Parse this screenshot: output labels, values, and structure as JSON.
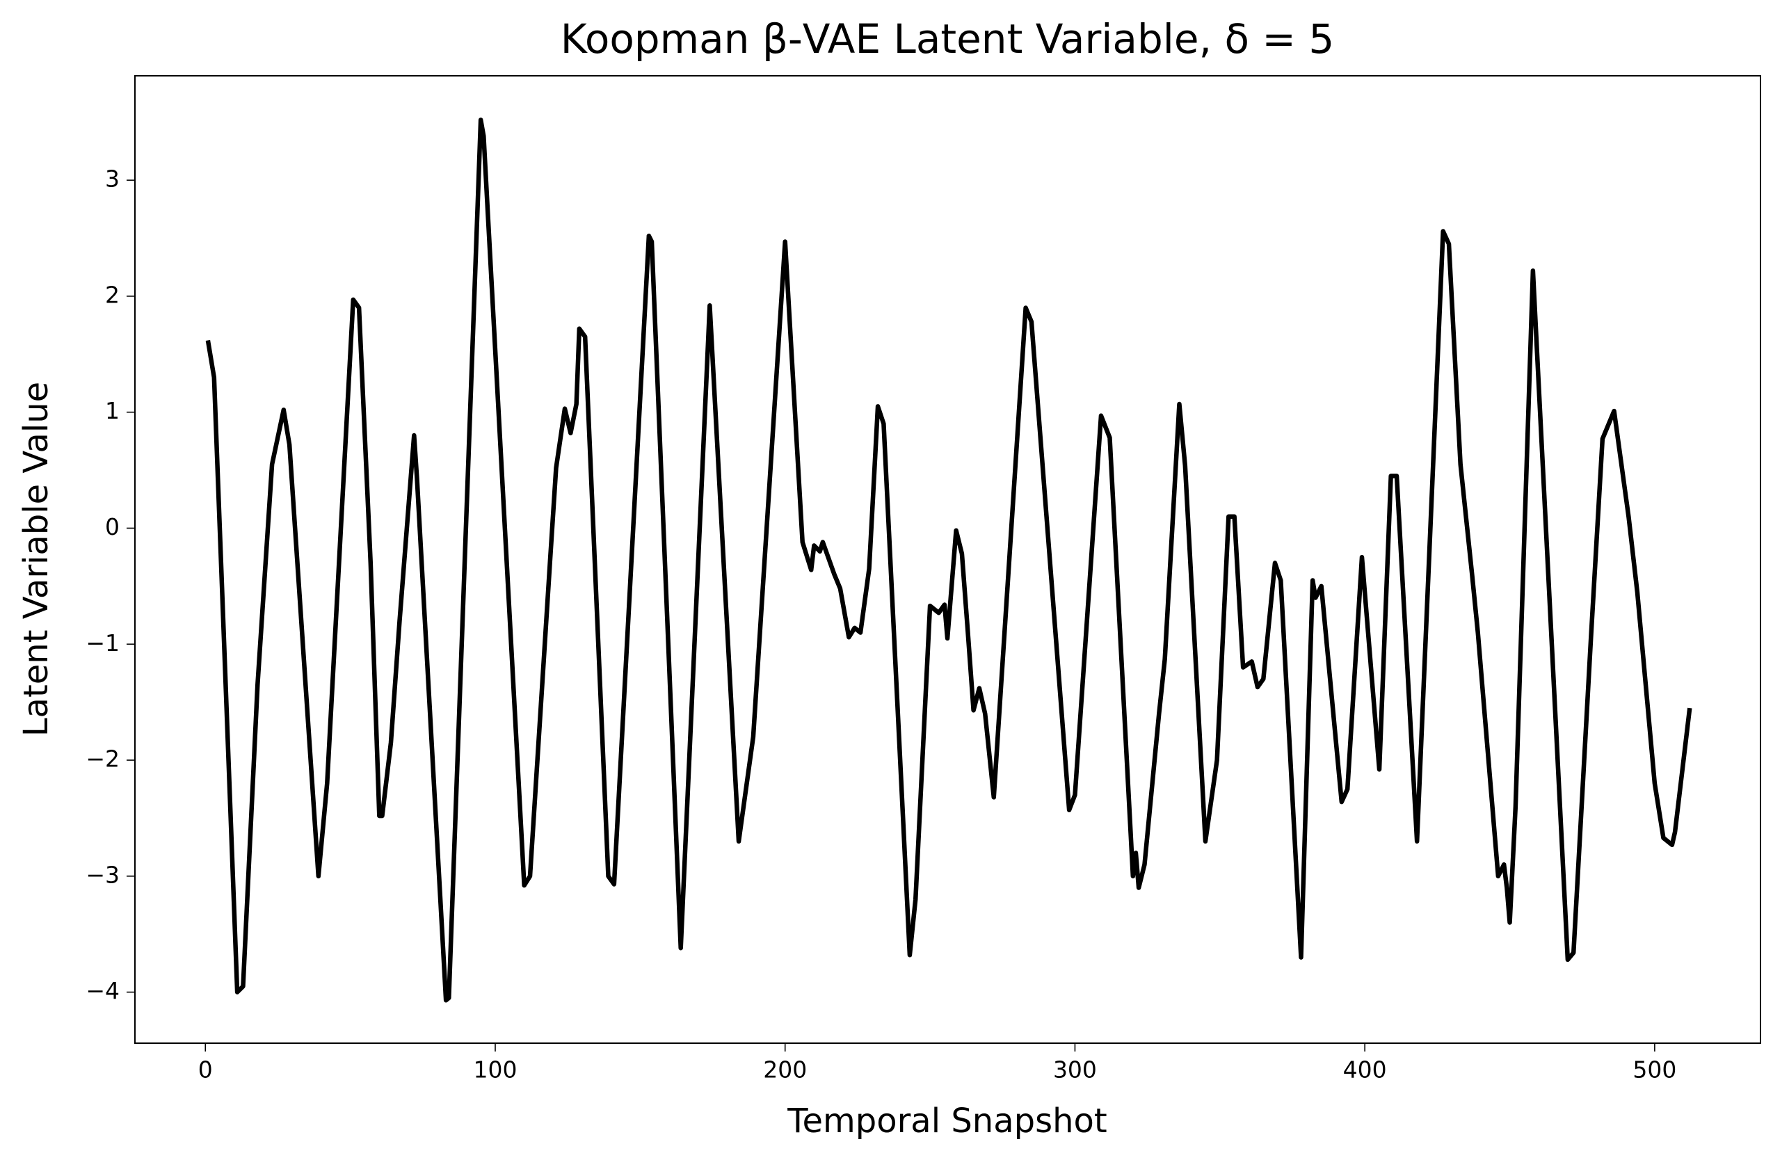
{
  "chart_data": {
    "type": "line",
    "title": "Koopman β-VAE Latent Variable, δ = 5",
    "xlabel": "Temporal Snapshot",
    "ylabel": "Latent Variable Value",
    "xlim": [
      -24.3,
      536.5
    ],
    "ylim": [
      -4.44,
      3.9
    ],
    "xticks": [
      0,
      100,
      200,
      300,
      400,
      500
    ],
    "yticks": [
      {
        "value": -4,
        "label": "−4"
      },
      {
        "value": -3,
        "label": "−3"
      },
      {
        "value": -2,
        "label": "−2"
      },
      {
        "value": -1,
        "label": "−1"
      },
      0,
      1,
      2,
      3
    ],
    "grid": false,
    "x": [
      1,
      3,
      11,
      13,
      18,
      23,
      27,
      29,
      39,
      42,
      51,
      53,
      57,
      60,
      61,
      64,
      67,
      72,
      73,
      83,
      84,
      95,
      96,
      110,
      112,
      119,
      121,
      124,
      126,
      128,
      129,
      131,
      139,
      141,
      153,
      154,
      164,
      174,
      184,
      189,
      200,
      206,
      209,
      210,
      212,
      213,
      217,
      219,
      222,
      224,
      226,
      229,
      232,
      234,
      243,
      245,
      250,
      253,
      255,
      256,
      259,
      261,
      263,
      265,
      267,
      269,
      272,
      283,
      285,
      298,
      300,
      309,
      312,
      320,
      321,
      322,
      324,
      329,
      331,
      336,
      338,
      345,
      349,
      353,
      355,
      358,
      361,
      363,
      365,
      369,
      371,
      378,
      382,
      383,
      385,
      392,
      394,
      399,
      405,
      409,
      411,
      418,
      427,
      429,
      433,
      437,
      439,
      446,
      448,
      449,
      450,
      452,
      458,
      470,
      472,
      478,
      482,
      486,
      491,
      494,
      500,
      503,
      506,
      507,
      512
    ],
    "series": [
      {
        "name": "latent",
        "color": "#000000",
        "values": [
          1.6,
          1.3,
          -4.0,
          -3.95,
          -1.35,
          0.55,
          1.02,
          0.72,
          -3.0,
          -2.2,
          1.97,
          1.9,
          -0.3,
          -2.48,
          -2.48,
          -1.85,
          -0.8,
          0.8,
          0.43,
          -4.07,
          -4.05,
          3.52,
          3.38,
          -3.08,
          -3.0,
          -0.25,
          0.52,
          1.03,
          0.82,
          1.07,
          1.72,
          1.65,
          -3.0,
          -3.07,
          2.52,
          2.47,
          -3.62,
          1.92,
          -2.7,
          -1.8,
          2.47,
          -0.12,
          -0.36,
          -0.15,
          -0.2,
          -0.12,
          -0.4,
          -0.52,
          -0.94,
          -0.86,
          -0.9,
          -0.35,
          1.05,
          0.9,
          -3.68,
          -3.2,
          -0.67,
          -0.73,
          -0.66,
          -0.95,
          -0.02,
          -0.22,
          -0.88,
          -1.57,
          -1.38,
          -1.6,
          -2.32,
          1.9,
          1.78,
          -2.43,
          -2.3,
          0.97,
          0.78,
          -3.0,
          -2.8,
          -3.1,
          -2.9,
          -1.6,
          -1.13,
          1.07,
          0.54,
          -2.7,
          -2.0,
          0.1,
          0.1,
          -1.2,
          -1.15,
          -1.37,
          -1.3,
          -0.3,
          -0.45,
          -3.7,
          -0.45,
          -0.6,
          -0.5,
          -2.36,
          -2.25,
          -0.25,
          -2.08,
          0.45,
          0.45,
          -2.7,
          2.56,
          2.45,
          0.55,
          -0.4,
          -0.9,
          -3.0,
          -2.9,
          -3.1,
          -3.4,
          -2.4,
          2.22,
          -3.72,
          -3.66,
          -0.95,
          0.77,
          1.01,
          0.1,
          -0.55,
          -2.2,
          -2.67,
          -2.73,
          -2.62,
          -1.57
        ]
      }
    ]
  }
}
